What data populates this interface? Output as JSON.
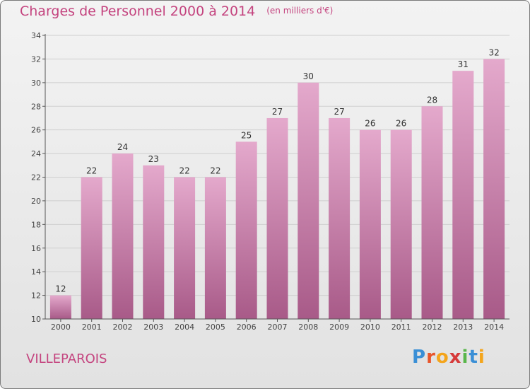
{
  "header": {
    "title": "Charges de Personnel 2000 à 2014",
    "unit": "(en milliers d'€)"
  },
  "footer": {
    "commune": "VILLEPAROIS",
    "logo_letters": [
      "P",
      "r",
      "o",
      "x",
      "i",
      "t",
      "i"
    ],
    "logo_colors": [
      "#3a8fd6",
      "#e8552b",
      "#f4a51c",
      "#d63a3a",
      "#59b64a",
      "#3a8fd6",
      "#f4a51c"
    ]
  },
  "colors": {
    "bar_top": "#e4a9cc",
    "bar_bottom": "#a85a88",
    "text": "#c4447f",
    "grid": "#cfcfcf"
  },
  "chart_data": {
    "type": "bar",
    "title": "Charges de Personnel 2000 à 2014",
    "subtitle": "(en milliers d'€)",
    "categories": [
      "2000",
      "2001",
      "2002",
      "2003",
      "2004",
      "2005",
      "2006",
      "2007",
      "2008",
      "2009",
      "2010",
      "2011",
      "2012",
      "2013",
      "2014"
    ],
    "values": [
      12,
      22,
      24,
      23,
      22,
      22,
      25,
      27,
      30,
      27,
      26,
      26,
      28,
      31,
      32
    ],
    "ylim": [
      10,
      34
    ],
    "yticks": [
      10,
      12,
      14,
      16,
      18,
      20,
      22,
      24,
      26,
      28,
      30,
      32,
      34
    ],
    "grid": true,
    "legend": "none"
  }
}
